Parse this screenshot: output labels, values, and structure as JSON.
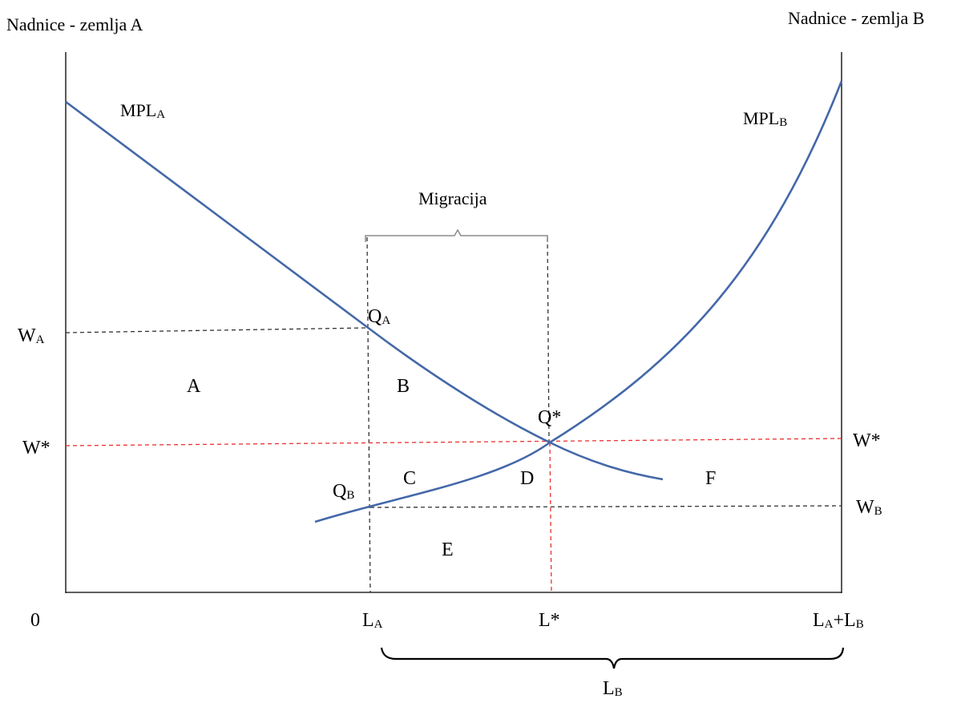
{
  "titles": {
    "left_axis": "Nadnice - zemlja A",
    "right_axis": "Nadnice - zemlja B"
  },
  "curves": {
    "mpl_a": {
      "base": "MPL",
      "sub": "A"
    },
    "mpl_b": {
      "base": "MPL",
      "sub": "B"
    }
  },
  "migration": "Migracija",
  "wage_labels": {
    "wa": {
      "base": "W",
      "sub": "A"
    },
    "wstar_left": "W*",
    "wstar_right": "W*",
    "wb": {
      "base": "W",
      "sub": "B"
    }
  },
  "points": {
    "qa": {
      "base": "Q",
      "sub": "A"
    },
    "qstar": "Q*",
    "qb": {
      "base": "Q",
      "sub": "B"
    }
  },
  "areas": [
    "A",
    "B",
    "C",
    "D",
    "E",
    "F"
  ],
  "x_labels": {
    "origin": "0",
    "la": {
      "base": "L",
      "sub": "A"
    },
    "lstar": "L*",
    "lalb": {
      "base": "L",
      "sub1": "A",
      "plus": "+L",
      "sub2": "B"
    },
    "lb": {
      "base": "L",
      "sub": "B"
    }
  },
  "colors": {
    "curve": "#4468a8",
    "axis": "#000000",
    "guide_dashed": "#333333",
    "equilibrium_dashed": "#e8322f",
    "bracket": "#8a8a8a"
  }
}
